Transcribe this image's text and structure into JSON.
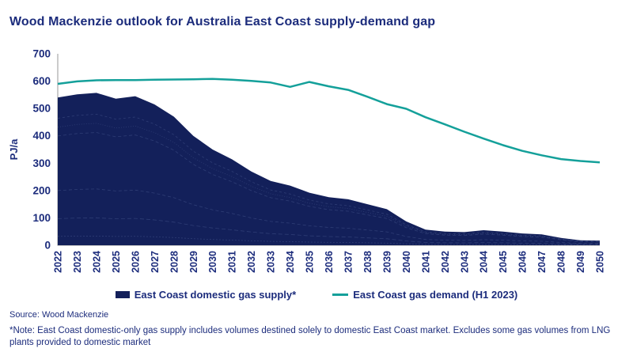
{
  "title": "Wood Mackenzie outlook for Australia East Coast supply-demand gap",
  "colors": {
    "navy_fill": "#13205A",
    "navy_text": "#1C2C7C",
    "teal": "#14A09A",
    "axis_gray": "#A9A9A9",
    "inner_line": "#46558C"
  },
  "chart_data": {
    "type": "area",
    "x": [
      2022,
      2023,
      2024,
      2025,
      2026,
      2027,
      2028,
      2029,
      2030,
      2031,
      2032,
      2033,
      2034,
      2035,
      2036,
      2037,
      2038,
      2039,
      2040,
      2041,
      2042,
      2043,
      2044,
      2045,
      2046,
      2047,
      2048,
      2049,
      2050
    ],
    "series": [
      {
        "name": "East Coast domestic gas supply*",
        "type": "area",
        "color": "#13205A",
        "values": [
          540,
          552,
          557,
          536,
          545,
          515,
          470,
          400,
          350,
          314,
          270,
          235,
          218,
          192,
          176,
          168,
          150,
          132,
          87,
          57,
          50,
          48,
          55,
          50,
          43,
          40,
          27,
          18,
          17
        ]
      },
      {
        "name": "East Coast gas demand (H1 2023)",
        "type": "line",
        "color": "#14A09A",
        "values": [
          590,
          599,
          603,
          604,
          604,
          605,
          606,
          607,
          608,
          605,
          601,
          595,
          579,
          597,
          581,
          568,
          543,
          516,
          499,
          468,
          442,
          415,
          390,
          366,
          345,
          329,
          315,
          308,
          303
        ]
      }
    ],
    "title": "Wood Mackenzie outlook for Australia East Coast supply-demand gap",
    "xlabel": "",
    "ylabel": "PJ/a",
    "ylim": [
      0,
      700
    ],
    "yticks": [
      0,
      100,
      200,
      300,
      400,
      500,
      600,
      700
    ],
    "grid": false,
    "legend_position": "bottom"
  },
  "source": "Source: Wood Mackenzie",
  "note": "*Note: East Coast domestic-only gas supply includes volumes destined solely to domestic East Coast market. Excludes some gas volumes from LNG plants provided to domestic market"
}
